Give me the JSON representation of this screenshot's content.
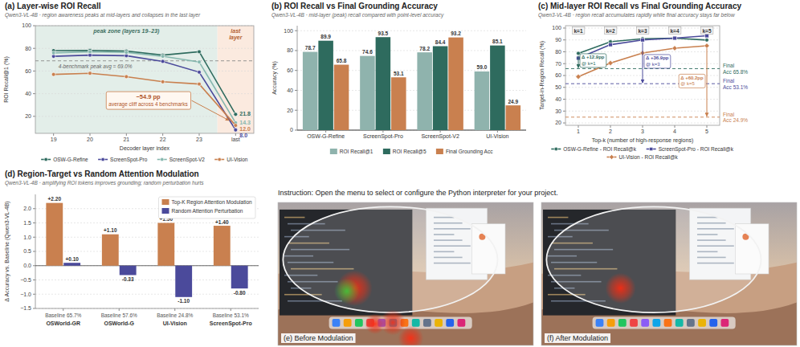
{
  "chart_data": [
    {
      "type": "line",
      "title": "(a) Layer-wise ROI Recall",
      "subtitle": "Qwen3-VL-4B · region awareness peaks at mid-layers and collapses in the last layer",
      "x_label": "Decoder layer index",
      "y_label": "ROI Recall@1 (%)",
      "categories": [
        "19",
        "20",
        "21",
        "22",
        "23",
        "last"
      ],
      "ylim": [
        5,
        100
      ],
      "yticks": [
        20,
        40,
        60,
        80,
        100
      ],
      "grid": true,
      "legend": "bottom",
      "marker": "circle",
      "series": [
        {
          "name": "OSW-G-Refine",
          "color": "#2e6b5e",
          "values": [
            78.0,
            78.2,
            77.6,
            74.0,
            77.0,
            21.8
          ],
          "value_labels": [
            null,
            null,
            null,
            null,
            null,
            "21.8"
          ]
        },
        {
          "name": "ScreenSpot-Pro",
          "color": "#4b4a9b",
          "values": [
            73.0,
            74.0,
            73.5,
            68.5,
            59.0,
            8.0
          ],
          "value_labels": [
            null,
            null,
            null,
            null,
            null,
            "8.0"
          ]
        },
        {
          "name": "ScreenSpot-V2",
          "color": "#86b7ae",
          "values": [
            76.0,
            77.0,
            76.5,
            73.0,
            68.0,
            14.3
          ],
          "value_labels": [
            null,
            null,
            null,
            null,
            null,
            "14.3"
          ]
        },
        {
          "name": "UI-Vision",
          "color": "#c9804f",
          "values": [
            57.0,
            58.0,
            55.0,
            50.5,
            48.5,
            12.0
          ],
          "value_labels": [
            null,
            null,
            null,
            null,
            null,
            "12.0"
          ]
        }
      ],
      "zones": [
        {
          "label": "peak zone (layers 19–23)",
          "from": "19",
          "to": "23"
        },
        {
          "label": [
            "last",
            "layer"
          ],
          "from": "last",
          "to": "last"
        }
      ],
      "reference": {
        "value": 69.0,
        "label": "4-benchmark peak avg = 69.0%"
      },
      "callout": [
        "−54.9 pp",
        "average cliff across 4 benchmarks"
      ]
    },
    {
      "type": "bar",
      "title": "(b) ROI Recall vs Final Grounding Accuracy",
      "subtitle": "Qwen3-VL-4B · mid-layer (peak) recall compared with point-level accuracy",
      "y_label": "Accuracy (%)",
      "categories": [
        "OSW-G-Refine",
        "ScreenSpot-Pro",
        "ScreenSpot-V2",
        "UI-Vision"
      ],
      "ylim": [
        0,
        105
      ],
      "yticks": [
        0,
        20,
        40,
        60,
        80,
        100
      ],
      "grid": true,
      "legend": "bottom",
      "data_labels": true,
      "series": [
        {
          "name": "ROI Recall@1",
          "color": "#8fb3ad",
          "values": [
            78.7,
            74.6,
            78.2,
            59.0
          ],
          "value_labels": [
            "78.7",
            "74.6",
            "78.2",
            "59.0"
          ]
        },
        {
          "name": "ROI Recall@5",
          "color": "#2e6b5e",
          "values": [
            89.9,
            93.5,
            84.4,
            85.1
          ],
          "value_labels": [
            "89.9",
            "93.5",
            "84.4",
            "85.1"
          ]
        },
        {
          "name": "Final Grounding Acc",
          "color": "#c9804f",
          "values": [
            65.8,
            53.1,
            93.2,
            24.9
          ],
          "value_labels": [
            "65.8",
            "53.1",
            "93.2",
            "24.9"
          ]
        }
      ]
    },
    {
      "type": "line",
      "title": "(c) Mid-layer ROI Recall vs Final Grounding Accuracy",
      "subtitle": "Qwen3-VL-4B · region recall accumulates rapidly while final accuracy stays far below",
      "x_label": "Top-k (number of high-response regions)",
      "y_label": "Target-in-Region Recall (%)",
      "x": [
        1,
        2,
        3,
        4,
        5
      ],
      "xlim": [
        0.6,
        5.4
      ],
      "xticks": [
        1,
        2,
        3,
        4,
        5
      ],
      "ylim": [
        18,
        102
      ],
      "yticks": [
        20,
        30,
        40,
        50,
        60,
        70,
        80,
        90,
        100
      ],
      "grid": true,
      "legend": "bottom",
      "series": [
        {
          "name": "OSW-G-Refine - ROI Recall@k",
          "color": "#2e6b5e",
          "marker": "circle",
          "values": [
            78.7,
            88.5,
            91.0,
            91.5,
            89.9
          ]
        },
        {
          "name": "ScreenSpot-Pro - ROI Recall@k",
          "color": "#4b4a9b",
          "marker": "square",
          "values": [
            74.6,
            86.0,
            90.0,
            91.5,
            93.5
          ]
        },
        {
          "name": "UI-Vision - ROI Recall@k",
          "color": "#c9804f",
          "marker": "diamond",
          "values": [
            59.0,
            70.5,
            79.0,
            83.0,
            85.1
          ]
        }
      ],
      "references": [
        {
          "value": 65.8,
          "label": [
            "Final",
            "Acc 65.8%"
          ],
          "color": "#2e6b5e"
        },
        {
          "value": 53.1,
          "label": [
            "Final",
            "Acc 53.1%"
          ],
          "color": "#4b4a9b"
        },
        {
          "value": 24.9,
          "label": [
            "Final",
            "Acc 24.9%"
          ],
          "color": "#c9804f"
        }
      ],
      "k_labels": [
        "k=1",
        "k=2",
        "k=3",
        "k=4",
        "k=5"
      ],
      "annotations": [
        {
          "lines": [
            "Δ +12.9pp",
            "@ k=1"
          ],
          "series": 0,
          "k": 1,
          "reference": 0
        },
        {
          "lines": [
            "Δ +36.9pp",
            "@ k=3"
          ],
          "series": 1,
          "k": 3,
          "reference": 1
        },
        {
          "lines": [
            "Δ +60.2pp",
            "@ k=5"
          ],
          "series": 2,
          "k": 5,
          "reference": 2
        }
      ]
    },
    {
      "type": "bar",
      "title": "(d) Region-Target vs Random Attention Modulation",
      "subtitle": "Qwen3-VL-4B · amplifying ROI tokens improves grounding; random perturbation hurts",
      "y_label": "Δ Accuracy vs. Baseline (Qwen3-VL-4B)",
      "categories": [
        "OSWorld-GR",
        "OSWorld-G",
        "UI-Vision",
        "ScreenSpot-Pro"
      ],
      "baselines": [
        "Baseline 65.7%",
        "Baseline 57.6%",
        "Baseline 24.8%",
        "Baseline 53.1%"
      ],
      "ylim": [
        -1.5,
        2.5
      ],
      "yticks": [
        {
          "value": -1.5,
          "label": "−1.5"
        },
        {
          "value": -1.0,
          "label": "−1.0"
        },
        {
          "value": -0.5,
          "label": "−0.5"
        },
        {
          "value": 0,
          "label": "0.0"
        },
        {
          "value": 0.5,
          "label": "0.5"
        },
        {
          "value": 1.0,
          "label": "1.0"
        },
        {
          "value": 1.5,
          "label": "1.5"
        },
        {
          "value": 2.0,
          "label": "2.0"
        }
      ],
      "grid": true,
      "legend": "upper right",
      "data_labels": true,
      "series": [
        {
          "name": "Top-K Region Attention Modulation",
          "color": "#c9804f",
          "values": [
            2.2,
            1.1,
            1.5,
            1.4
          ],
          "value_labels": [
            "+2.20",
            "+1.10",
            "+1.50",
            "+1.40"
          ]
        },
        {
          "name": "Random Attention Perturbation",
          "color": "#4b4a9b",
          "values": [
            0.1,
            -0.33,
            -1.1,
            -0.8
          ],
          "value_labels": [
            "+0.10",
            "-0.33",
            "-1.10",
            "-0.80"
          ]
        }
      ]
    }
  ],
  "screenshots": {
    "instruction": "Instruction: Open the menu to select or configure the Python interpreter for your project.",
    "panels": [
      {
        "label": "(e) Before Modulation"
      },
      {
        "label": "(f) After Modulation"
      }
    ]
  }
}
